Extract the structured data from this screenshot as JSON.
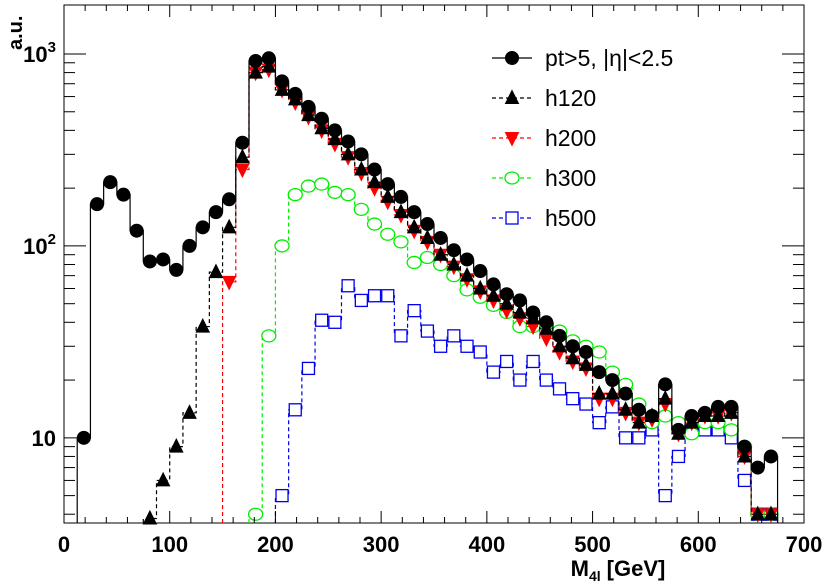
{
  "chart_data": {
    "type": "line",
    "style": "step-histogram",
    "title": "",
    "xlabel_main": "M",
    "xlabel_sub": "4l",
    "xlabel_unit": "[GeV]",
    "ylabel": "a.u.",
    "xlim": [
      0,
      700
    ],
    "ylim": [
      3.6,
      1800
    ],
    "yscale": "log",
    "x_ticks": [
      {
        "value": 0,
        "label": "0"
      },
      {
        "value": 100,
        "label": "100"
      },
      {
        "value": 200,
        "label": "200"
      },
      {
        "value": 300,
        "label": "300"
      },
      {
        "value": 400,
        "label": "400"
      },
      {
        "value": 500,
        "label": "500"
      },
      {
        "value": 600,
        "label": "600"
      },
      {
        "value": 700,
        "label": "700"
      }
    ],
    "y_ticks": [
      {
        "value": 10,
        "base": "10",
        "exp": ""
      },
      {
        "value": 100,
        "base": "10",
        "exp": "2"
      },
      {
        "value": 1000,
        "base": "10",
        "exp": "3"
      }
    ],
    "bin_width": 12.5,
    "first_bin_low": 12.5,
    "series": [
      {
        "name": "pt>5, |η|<2.5",
        "color": "#000000",
        "marker": "filled-circle",
        "line": "solid",
        "bin_start": 0,
        "values": [
          10,
          165,
          215,
          185,
          120,
          83,
          85,
          75,
          100,
          125,
          150,
          175,
          345,
          920,
          950,
          720,
          620,
          530,
          460,
          400,
          350,
          300,
          250,
          210,
          180,
          150,
          130,
          110,
          95,
          85,
          74,
          63,
          56,
          52,
          45,
          40,
          34,
          30,
          28,
          22,
          20,
          17,
          14,
          13,
          19,
          11,
          13,
          13.5,
          14.5,
          14.5,
          9,
          7,
          8
        ]
      },
      {
        "name": "h120",
        "color": "#000000",
        "marker": "filled-triangle-up",
        "line": "dashed",
        "bin_start": 0,
        "values": [
          null,
          null,
          null,
          null,
          null,
          3.8,
          6,
          9,
          13.5,
          38,
          73,
          125,
          290,
          800,
          860,
          650,
          580,
          480,
          410,
          360,
          300,
          250,
          215,
          180,
          150,
          125,
          110,
          90,
          80,
          70,
          60,
          55,
          50,
          45,
          42,
          37,
          30,
          26,
          24,
          17,
          17,
          14,
          12,
          13,
          16,
          10.5,
          12,
          13,
          13,
          13.5,
          8,
          4,
          4
        ]
      },
      {
        "name": "h200",
        "color": "#ff0000",
        "marker": "filled-triangle-down",
        "line": "dashed",
        "bin_start": 0,
        "values": [
          null,
          null,
          null,
          null,
          null,
          null,
          null,
          null,
          null,
          null,
          null,
          65,
          250,
          800,
          830,
          650,
          560,
          470,
          400,
          340,
          290,
          240,
          200,
          170,
          145,
          120,
          105,
          90,
          78,
          67,
          58,
          52,
          46,
          42,
          38,
          33,
          28,
          25,
          23,
          16,
          16,
          13.5,
          12,
          12.5,
          15,
          10.5,
          12,
          13,
          13,
          13.5,
          8,
          4,
          4
        ]
      },
      {
        "name": "h300",
        "color": "#00ee00",
        "marker": "open-circle",
        "line": "dashed",
        "bin_start": 0,
        "values": [
          null,
          null,
          null,
          null,
          null,
          null,
          null,
          null,
          null,
          null,
          null,
          null,
          null,
          4,
          34,
          100,
          185,
          205,
          210,
          190,
          185,
          155,
          130,
          115,
          105,
          82,
          87,
          80,
          70,
          59,
          54,
          49,
          45,
          38,
          38,
          39,
          36,
          32,
          30,
          28,
          22,
          19,
          15,
          12,
          13,
          12,
          10.5,
          12,
          12,
          11,
          9,
          4,
          4
        ]
      },
      {
        "name": "h500",
        "color": "#0000ee",
        "marker": "open-square",
        "line": "dashed",
        "bin_start": 0,
        "values": [
          null,
          null,
          null,
          null,
          null,
          null,
          null,
          null,
          null,
          null,
          null,
          null,
          null,
          null,
          null,
          5,
          14,
          23,
          41,
          40,
          62,
          52,
          55,
          55,
          34,
          46,
          36,
          30,
          34,
          30,
          28,
          22,
          25,
          20,
          25,
          20,
          18,
          16,
          15,
          12,
          14.5,
          10,
          10,
          11,
          5,
          8,
          11,
          11,
          11,
          10,
          6,
          4,
          4
        ]
      }
    ],
    "legend_position": "top-right"
  }
}
